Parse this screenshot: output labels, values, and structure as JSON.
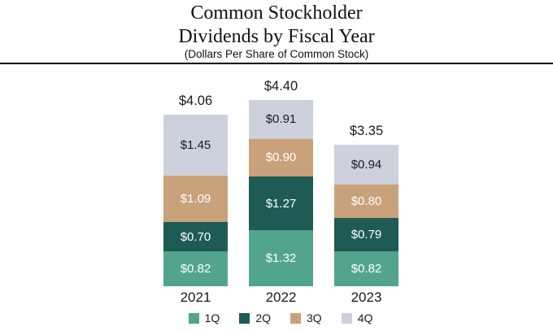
{
  "title": {
    "line1": "Common Stockholder",
    "line2": "Dividends by Fiscal Year"
  },
  "subtitle": "(Dollars Per Share of Common Stock)",
  "chart_data": {
    "type": "bar",
    "variant": "stacked",
    "title": "Common Stockholder Dividends by Fiscal Year",
    "subtitle": "(Dollars Per Share of Common Stock)",
    "categories": [
      "2021",
      "2022",
      "2023"
    ],
    "series": [
      {
        "name": "1Q",
        "color": "#52A58C",
        "label_color": "#FFFFFF",
        "values": [
          0.82,
          1.32,
          0.82
        ],
        "labels": [
          "$0.82",
          "$1.32",
          "$0.82"
        ]
      },
      {
        "name": "2Q",
        "color": "#1E5B54",
        "label_color": "#FFFFFF",
        "values": [
          0.7,
          1.27,
          0.79
        ],
        "labels": [
          "$0.70",
          "$1.27",
          "$0.79"
        ]
      },
      {
        "name": "3Q",
        "color": "#C9A17A",
        "label_color": "#FFFFFF",
        "values": [
          1.09,
          0.9,
          0.8
        ],
        "labels": [
          "$1.09",
          "$0.90",
          "$0.80"
        ]
      },
      {
        "name": "4Q",
        "color": "#CDD1DB",
        "label_color": "#1A1A1A",
        "values": [
          1.45,
          0.91,
          0.94
        ],
        "labels": [
          "$1.45",
          "$0.91",
          "$0.94"
        ]
      }
    ],
    "totals": [
      4.06,
      4.4,
      3.35
    ],
    "total_labels": [
      "$4.06",
      "$4.40",
      "$3.35"
    ],
    "legend": [
      "1Q",
      "2Q",
      "3Q",
      "4Q"
    ],
    "legend_position": "bottom",
    "grid": false,
    "value_axis_shown": false,
    "value_format": "dollars_per_share"
  }
}
